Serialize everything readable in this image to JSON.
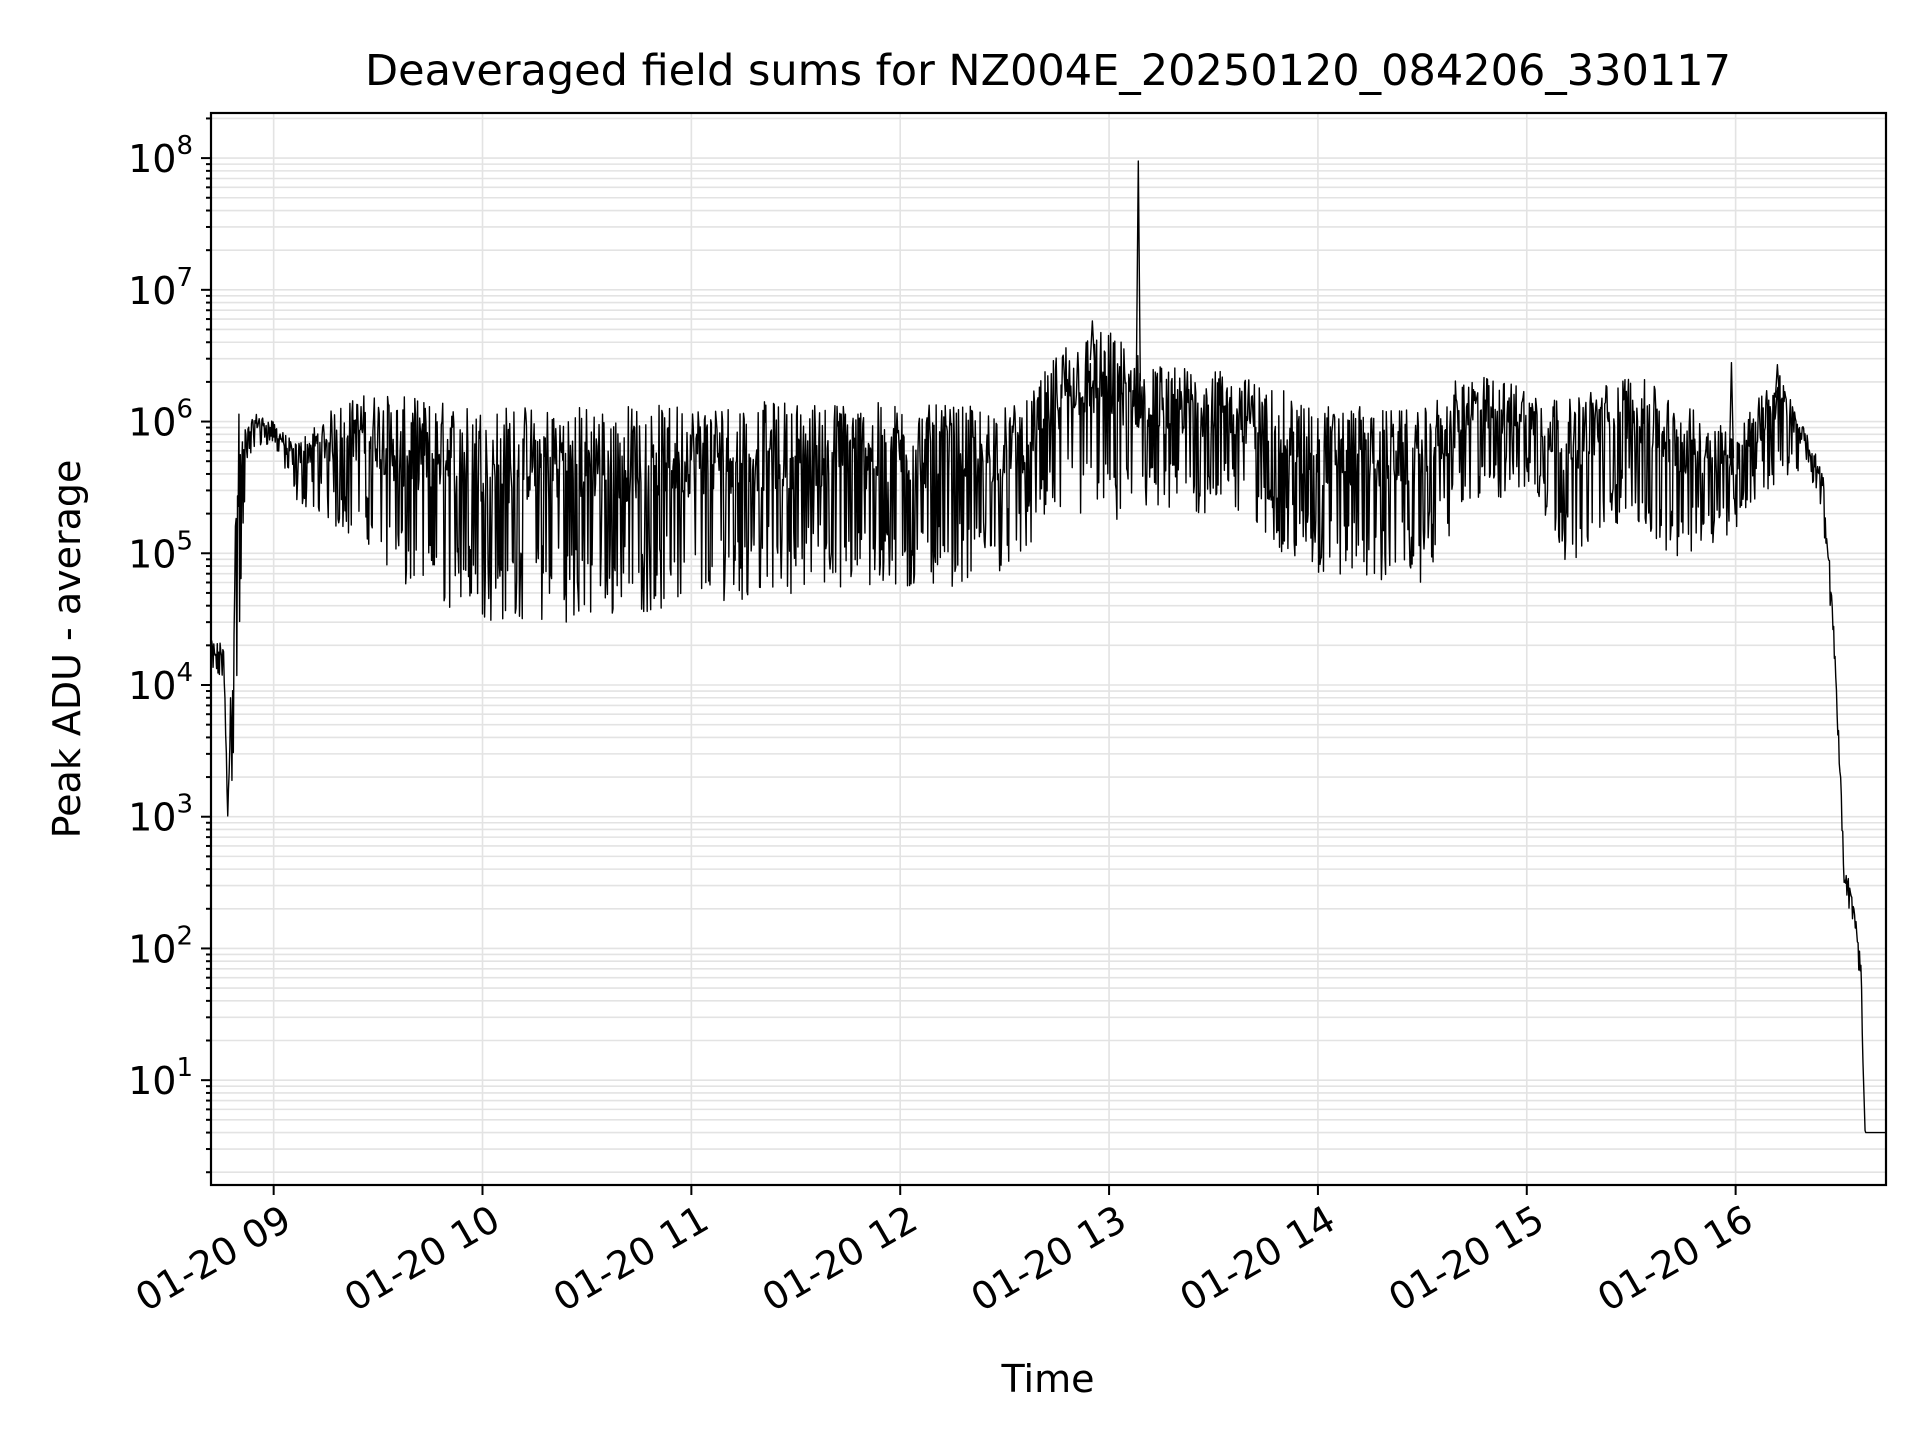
{
  "chart_data": {
    "type": "line",
    "title": "Deaveraged field sums for NZ004E_20250120_084206_330117",
    "xlabel": "Time",
    "ylabel": "Peak ADU - average",
    "yscale": "log",
    "grid": "major and minor",
    "line_color": "#000000",
    "x_tick_labels": [
      "01-20 09",
      "01-20 10",
      "01-20 11",
      "01-20 12",
      "01-20 13",
      "01-20 14",
      "01-20 15",
      "01-20 16"
    ],
    "x_ticks_hours": [
      9,
      10,
      11,
      12,
      13,
      14,
      15,
      16
    ],
    "xlim_hours": [
      8.7,
      16.72
    ],
    "ylim": [
      1.6,
      220000000
    ],
    "y_tick_values": [
      10,
      100,
      1000,
      10000,
      100000,
      1000000,
      10000000,
      100000000
    ],
    "y_tick_labels": [
      {
        "base": "10",
        "exp": "1"
      },
      {
        "base": "10",
        "exp": "2"
      },
      {
        "base": "10",
        "exp": "3"
      },
      {
        "base": "10",
        "exp": "4"
      },
      {
        "base": "10",
        "exp": "5"
      },
      {
        "base": "10",
        "exp": "6"
      },
      {
        "base": "10",
        "exp": "7"
      },
      {
        "base": "10",
        "exp": "8"
      }
    ],
    "envelope": {
      "x_hours": [
        8.7,
        8.76,
        8.78,
        8.83,
        8.87,
        8.92,
        9.0,
        9.1,
        9.2,
        9.3,
        9.45,
        9.6,
        9.8,
        10.0,
        10.5,
        11.0,
        11.5,
        12.0,
        12.4,
        12.6,
        12.8,
        13.0,
        13.2,
        13.6,
        14.0,
        14.5,
        14.7,
        15.0,
        15.2,
        15.5,
        15.7,
        16.0,
        16.2,
        16.35,
        16.42,
        16.47,
        16.52,
        16.57,
        16.6,
        16.62,
        16.72
      ],
      "upper": [
        22000,
        22000,
        1300,
        1500000,
        900000,
        1200000,
        1000000,
        700000,
        1000000,
        1400000,
        1800000,
        1700000,
        1600000,
        1500000,
        1500000,
        1500000,
        1600000,
        1500000,
        1400000,
        1500000,
        4800000,
        5500000,
        3000000,
        2500000,
        1500000,
        1300000,
        2500000,
        2000000,
        1600000,
        2600000,
        1600000,
        900000,
        2700000,
        750000,
        450000,
        30000,
        500,
        200,
        80,
        4,
        4
      ],
      "lower": [
        11000,
        11000,
        700,
        6000,
        500000,
        600000,
        700000,
        250000,
        200000,
        150000,
        120000,
        50000,
        40000,
        30000,
        30000,
        40000,
        50000,
        50000,
        60000,
        100000,
        200000,
        150000,
        180000,
        200000,
        60000,
        60000,
        200000,
        300000,
        80000,
        200000,
        80000,
        150000,
        350000,
        450000,
        150000,
        20000,
        300,
        120,
        40,
        4,
        4
      ]
    },
    "spikes": [
      {
        "x_hours": 13.14,
        "value": 95000000
      },
      {
        "x_hours": 12.92,
        "value": 5800000
      },
      {
        "x_hours": 15.98,
        "value": 2800000
      },
      {
        "x_hours": 16.2,
        "value": 2700000
      }
    ]
  }
}
